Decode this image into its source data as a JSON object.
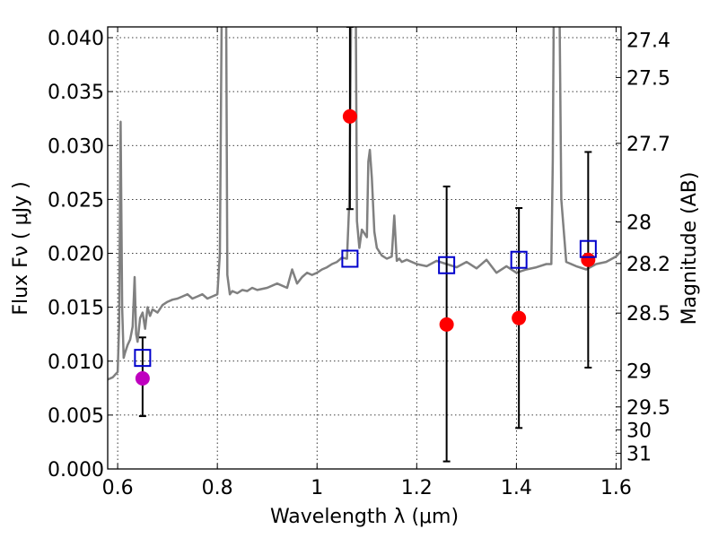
{
  "chart_data": {
    "type": "line",
    "xlabel": "Wavelength  λ (μm)",
    "ylabel": "Flux  Fν  ( μJy )",
    "y2label": "Magnitude (AB)",
    "xlim": [
      0.58,
      1.61
    ],
    "ylim": [
      0.0,
      0.041
    ],
    "grid": true,
    "xticks": [
      {
        "value": 0.6,
        "label": "0.6"
      },
      {
        "value": 0.8,
        "label": "0.8"
      },
      {
        "value": 1.0,
        "label": "1"
      },
      {
        "value": 1.2,
        "label": "1.2"
      },
      {
        "value": 1.4,
        "label": "1.4"
      },
      {
        "value": 1.6,
        "label": "1.6"
      }
    ],
    "yticks": [
      {
        "value": 0.0,
        "label": "0.000"
      },
      {
        "value": 0.005,
        "label": "0.005"
      },
      {
        "value": 0.01,
        "label": "0.010"
      },
      {
        "value": 0.015,
        "label": "0.015"
      },
      {
        "value": 0.02,
        "label": "0.020"
      },
      {
        "value": 0.025,
        "label": "0.025"
      },
      {
        "value": 0.03,
        "label": "0.030"
      },
      {
        "value": 0.035,
        "label": "0.035"
      },
      {
        "value": 0.04,
        "label": "0.040"
      }
    ],
    "y2ticks": [
      {
        "mag": 27.4,
        "label": "27.4"
      },
      {
        "mag": 27.5,
        "label": "27.5"
      },
      {
        "mag": 27.7,
        "label": "27.7"
      },
      {
        "mag": 28.0,
        "label": "28"
      },
      {
        "mag": 28.2,
        "label": "28.2"
      },
      {
        "mag": 28.5,
        "label": "28.5"
      },
      {
        "mag": 29.0,
        "label": "29"
      },
      {
        "mag": 29.5,
        "label": "29.5"
      },
      {
        "mag": 30.0,
        "label": "30"
      },
      {
        "mag": 31.0,
        "label": "31"
      }
    ],
    "spectrum": {
      "color": "#808080",
      "x": [
        0.58,
        0.59,
        0.6,
        0.603,
        0.606,
        0.609,
        0.612,
        0.615,
        0.62,
        0.625,
        0.63,
        0.634,
        0.637,
        0.64,
        0.645,
        0.65,
        0.655,
        0.66,
        0.665,
        0.67,
        0.68,
        0.69,
        0.7,
        0.71,
        0.72,
        0.73,
        0.74,
        0.75,
        0.76,
        0.77,
        0.78,
        0.79,
        0.8,
        0.805,
        0.81,
        0.814,
        0.817,
        0.82,
        0.825,
        0.83,
        0.84,
        0.85,
        0.86,
        0.87,
        0.88,
        0.9,
        0.92,
        0.94,
        0.95,
        0.96,
        0.965,
        0.97,
        0.98,
        0.99,
        1.0,
        1.01,
        1.02,
        1.03,
        1.04,
        1.05,
        1.06,
        1.065,
        1.07,
        1.074,
        1.077,
        1.08,
        1.085,
        1.09,
        1.1,
        1.103,
        1.106,
        1.11,
        1.115,
        1.12,
        1.13,
        1.14,
        1.15,
        1.155,
        1.16,
        1.165,
        1.17,
        1.18,
        1.2,
        1.22,
        1.24,
        1.26,
        1.28,
        1.3,
        1.32,
        1.34,
        1.36,
        1.38,
        1.4,
        1.42,
        1.44,
        1.46,
        1.47,
        1.473,
        1.476,
        1.48,
        1.485,
        1.49,
        1.5,
        1.52,
        1.54,
        1.56,
        1.58,
        1.6,
        1.61
      ],
      "y": [
        0.0083,
        0.0085,
        0.009,
        0.0135,
        0.0322,
        0.015,
        0.0103,
        0.0108,
        0.0115,
        0.012,
        0.0132,
        0.0178,
        0.0125,
        0.0118,
        0.014,
        0.0145,
        0.013,
        0.015,
        0.0142,
        0.0148,
        0.0145,
        0.0152,
        0.0155,
        0.0157,
        0.0158,
        0.016,
        0.0162,
        0.0158,
        0.016,
        0.0162,
        0.0158,
        0.016,
        0.0162,
        0.02,
        0.05,
        0.05,
        0.05,
        0.018,
        0.0162,
        0.0165,
        0.0163,
        0.0166,
        0.0165,
        0.0168,
        0.0166,
        0.0168,
        0.0172,
        0.0168,
        0.0185,
        0.0172,
        0.0175,
        0.0178,
        0.0182,
        0.018,
        0.0182,
        0.0185,
        0.0187,
        0.019,
        0.0192,
        0.0196,
        0.0195,
        0.025,
        0.05,
        0.05,
        0.05,
        0.023,
        0.0205,
        0.0222,
        0.0215,
        0.0285,
        0.0296,
        0.027,
        0.022,
        0.0205,
        0.0198,
        0.0195,
        0.0197,
        0.0235,
        0.0193,
        0.0195,
        0.0192,
        0.0194,
        0.019,
        0.0188,
        0.0193,
        0.019,
        0.0187,
        0.0192,
        0.0186,
        0.0194,
        0.0182,
        0.0188,
        0.0182,
        0.0185,
        0.0187,
        0.019,
        0.019,
        0.0285,
        0.05,
        0.05,
        0.05,
        0.025,
        0.0192,
        0.0188,
        0.0185,
        0.019,
        0.0192,
        0.0197,
        0.0202
      ]
    },
    "series": [
      {
        "name": "",
        "marker": "filled-circle",
        "color": "#ff0000",
        "x": [
          1.066,
          1.26,
          1.405,
          1.544
        ],
        "values": [
          0.0327,
          0.0134,
          0.014,
          0.0194
        ]
      },
      {
        "name": "",
        "marker": "filled-circle",
        "color": "#bf00bf",
        "x": [
          0.65
        ],
        "values": [
          0.0084
        ]
      },
      {
        "name": "",
        "marker": "open-square",
        "color": "#0000cc",
        "x": [
          0.65,
          1.066,
          1.26,
          1.405,
          1.544
        ],
        "values": [
          0.0103,
          0.0195,
          0.0189,
          0.0194,
          0.0204
        ]
      }
    ],
    "errorbars": [
      {
        "x": 0.65,
        "low": 0.0049,
        "high": 0.0122
      },
      {
        "x": 1.066,
        "low": 0.0241,
        "high": 0.041
      },
      {
        "x": 1.26,
        "low": 0.0007,
        "high": 0.0262
      },
      {
        "x": 1.405,
        "low": 0.0038,
        "high": 0.0242
      },
      {
        "x": 1.544,
        "low": 0.0094,
        "high": 0.0294
      }
    ]
  }
}
